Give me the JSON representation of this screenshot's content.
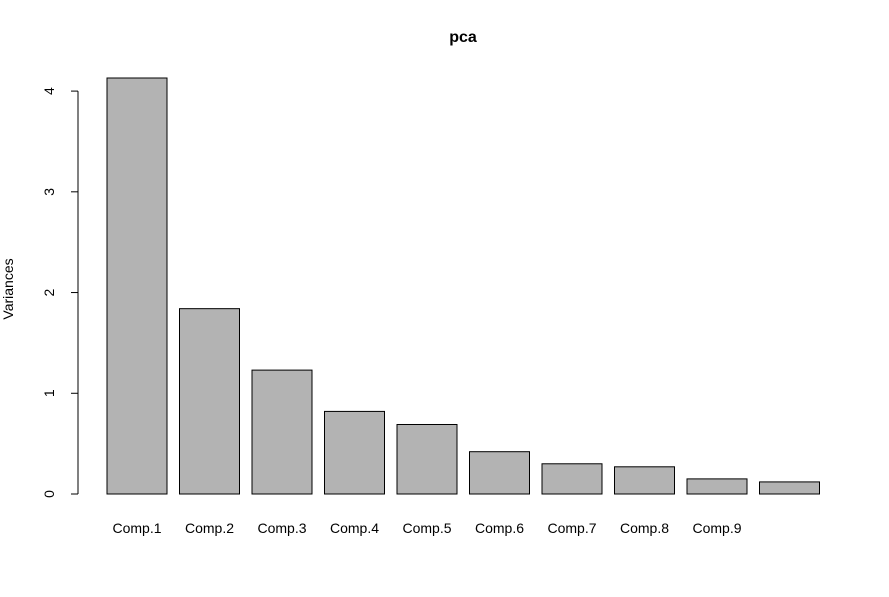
{
  "chart_data": {
    "type": "bar",
    "title": "pca",
    "y_label": "Variances",
    "categories": [
      "Comp.1",
      "Comp.2",
      "Comp.3",
      "Comp.4",
      "Comp.5",
      "Comp.6",
      "Comp.7",
      "Comp.8",
      "Comp.9",
      null
    ],
    "values": [
      4.13,
      1.84,
      1.23,
      0.82,
      0.69,
      0.42,
      0.3,
      0.27,
      0.15,
      0.12
    ],
    "color": "#b3b3b3",
    "ylim": [
      0,
      4.13
    ],
    "yticks": [
      0,
      1,
      2,
      3,
      4
    ],
    "grid": false
  }
}
